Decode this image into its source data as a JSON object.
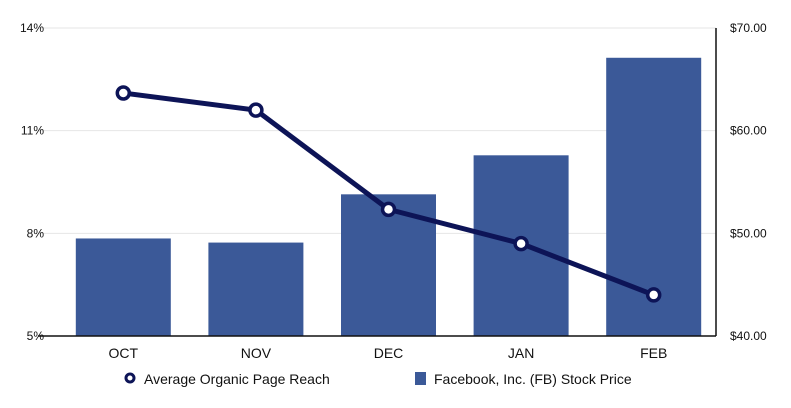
{
  "chart_data": {
    "type": "bar+line",
    "categories": [
      "OCT",
      "NOV",
      "DEC",
      "JAN",
      "FEB"
    ],
    "series": [
      {
        "name": "Facebook, Inc. (FB) Stock Price",
        "type": "bar",
        "axis": "right",
        "values": [
          49.5,
          49.1,
          53.8,
          57.6,
          67.1
        ],
        "color": "#3b5998"
      },
      {
        "name": "Average Organic Page Reach",
        "type": "line",
        "axis": "left",
        "values": [
          12.1,
          11.6,
          8.7,
          7.7,
          6.2
        ],
        "color": "#0d1457"
      }
    ],
    "left_axis": {
      "ylim": [
        5,
        14
      ],
      "ticks": [
        5,
        8,
        11,
        14
      ],
      "tick_labels": [
        "5%",
        "8%",
        "11%",
        "14%"
      ]
    },
    "right_axis": {
      "ylim": [
        40,
        70
      ],
      "ticks": [
        40,
        50,
        60,
        70
      ],
      "tick_labels": [
        "$40.00",
        "$50.00",
        "$60.00",
        "$70.00"
      ]
    },
    "grid": true,
    "legend": {
      "placement": "bottom",
      "entries": [
        "Average Organic Page Reach",
        "Facebook, Inc. (FB) Stock Price"
      ]
    }
  }
}
